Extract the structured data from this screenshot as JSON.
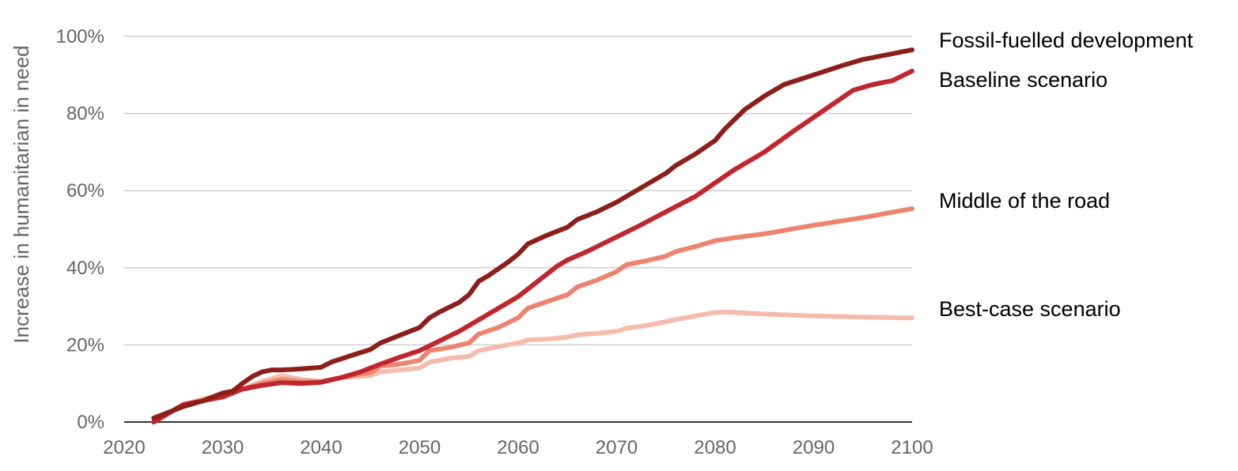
{
  "chart_data": {
    "type": "line",
    "title": "",
    "xlabel": "",
    "ylabel": "Increase in humanitarian in need",
    "xlim": [
      2020,
      2100
    ],
    "ylim": [
      0,
      100
    ],
    "x_ticks": [
      2020,
      2030,
      2040,
      2050,
      2060,
      2070,
      2080,
      2090,
      2100
    ],
    "y_ticks": [
      0,
      20,
      40,
      60,
      80,
      100
    ],
    "y_tick_suffix": "%",
    "grid": "horizontal",
    "legend": "inline-right",
    "series": [
      {
        "name": "Best-case scenario",
        "color": "#f5bcad",
        "points": [
          [
            2023,
            0
          ],
          [
            2024,
            1.5
          ],
          [
            2026,
            4.5
          ],
          [
            2028,
            6
          ],
          [
            2030,
            7
          ],
          [
            2032,
            8.5
          ],
          [
            2034,
            10.5
          ],
          [
            2036,
            12
          ],
          [
            2038,
            11
          ],
          [
            2040,
            10.5
          ],
          [
            2042,
            11.5
          ],
          [
            2045,
            12
          ],
          [
            2046,
            13
          ],
          [
            2048,
            13.5
          ],
          [
            2050,
            14
          ],
          [
            2051,
            15.5
          ],
          [
            2053,
            16.5
          ],
          [
            2055,
            17
          ],
          [
            2056,
            18.5
          ],
          [
            2058,
            19.5
          ],
          [
            2060,
            20.5
          ],
          [
            2061,
            21.3
          ],
          [
            2063,
            21.5
          ],
          [
            2065,
            22
          ],
          [
            2066,
            22.6
          ],
          [
            2068,
            23
          ],
          [
            2070,
            23.5
          ],
          [
            2071,
            24.3
          ],
          [
            2073,
            25
          ],
          [
            2075,
            26
          ],
          [
            2076,
            26.6
          ],
          [
            2078,
            27.5
          ],
          [
            2080,
            28.4
          ],
          [
            2081,
            28.5
          ],
          [
            2085,
            28
          ],
          [
            2090,
            27.5
          ],
          [
            2095,
            27.2
          ],
          [
            2100,
            27
          ]
        ]
      },
      {
        "name": "Middle of the road",
        "color": "#ec8570",
        "points": [
          [
            2023,
            0
          ],
          [
            2024,
            1.5
          ],
          [
            2026,
            4.5
          ],
          [
            2028,
            5.5
          ],
          [
            2030,
            7
          ],
          [
            2032,
            8.5
          ],
          [
            2034,
            10
          ],
          [
            2036,
            11
          ],
          [
            2038,
            10.5
          ],
          [
            2040,
            10.5
          ],
          [
            2042,
            11.5
          ],
          [
            2044,
            12.5
          ],
          [
            2045,
            12.8
          ],
          [
            2046,
            14.5
          ],
          [
            2048,
            15
          ],
          [
            2050,
            16
          ],
          [
            2051,
            18.5
          ],
          [
            2053,
            19.3
          ],
          [
            2055,
            20.5
          ],
          [
            2056,
            22.8
          ],
          [
            2058,
            24.5
          ],
          [
            2060,
            27
          ],
          [
            2061,
            29.5
          ],
          [
            2063,
            31.3
          ],
          [
            2065,
            33
          ],
          [
            2066,
            35
          ],
          [
            2068,
            36.8
          ],
          [
            2070,
            39
          ],
          [
            2071,
            40.8
          ],
          [
            2073,
            41.8
          ],
          [
            2075,
            43
          ],
          [
            2076,
            44.2
          ],
          [
            2078,
            45.5
          ],
          [
            2080,
            47
          ],
          [
            2082,
            47.8
          ],
          [
            2085,
            48.8
          ],
          [
            2090,
            51
          ],
          [
            2095,
            53
          ],
          [
            2100,
            55.3
          ]
        ]
      },
      {
        "name": "Baseline scenario",
        "color": "#c0262d",
        "points": [
          [
            2023,
            0
          ],
          [
            2024,
            1.5
          ],
          [
            2026,
            4.5
          ],
          [
            2028,
            5.5
          ],
          [
            2030,
            6.5
          ],
          [
            2032,
            8.5
          ],
          [
            2034,
            9.5
          ],
          [
            2036,
            10.2
          ],
          [
            2038,
            10
          ],
          [
            2040,
            10.3
          ],
          [
            2042,
            11.5
          ],
          [
            2044,
            13
          ],
          [
            2046,
            15
          ],
          [
            2048,
            16.8
          ],
          [
            2050,
            18.5
          ],
          [
            2052,
            21
          ],
          [
            2054,
            23.5
          ],
          [
            2056,
            26.5
          ],
          [
            2058,
            29.5
          ],
          [
            2060,
            32.5
          ],
          [
            2062,
            36.5
          ],
          [
            2064,
            40.5
          ],
          [
            2065,
            42
          ],
          [
            2067,
            44.2
          ],
          [
            2070,
            48
          ],
          [
            2072,
            50.5
          ],
          [
            2075,
            54.5
          ],
          [
            2078,
            58.5
          ],
          [
            2080,
            62
          ],
          [
            2082,
            65.5
          ],
          [
            2085,
            70
          ],
          [
            2088,
            75.5
          ],
          [
            2090,
            79
          ],
          [
            2092,
            82.5
          ],
          [
            2094,
            86
          ],
          [
            2096,
            87.5
          ],
          [
            2098,
            88.5
          ],
          [
            2100,
            91
          ]
        ]
      },
      {
        "name": "Fossil-fuelled development",
        "color": "#8c1f1a",
        "points": [
          [
            2023,
            1
          ],
          [
            2024,
            2
          ],
          [
            2026,
            4
          ],
          [
            2028,
            5.5
          ],
          [
            2030,
            7.5
          ],
          [
            2031,
            8
          ],
          [
            2032,
            10
          ],
          [
            2033,
            11.8
          ],
          [
            2034,
            13
          ],
          [
            2035,
            13.5
          ],
          [
            2036,
            13.5
          ],
          [
            2038,
            13.8
          ],
          [
            2040,
            14.2
          ],
          [
            2041,
            15.5
          ],
          [
            2043,
            17.2
          ],
          [
            2045,
            18.8
          ],
          [
            2046,
            20.5
          ],
          [
            2048,
            22.5
          ],
          [
            2050,
            24.5
          ],
          [
            2051,
            27
          ],
          [
            2052,
            28.5
          ],
          [
            2054,
            31
          ],
          [
            2055,
            33
          ],
          [
            2056,
            36.5
          ],
          [
            2057,
            38
          ],
          [
            2059,
            41.5
          ],
          [
            2060,
            43.5
          ],
          [
            2061,
            46.2
          ],
          [
            2063,
            48.5
          ],
          [
            2065,
            50.5
          ],
          [
            2066,
            52.5
          ],
          [
            2068,
            54.5
          ],
          [
            2070,
            57
          ],
          [
            2072,
            60
          ],
          [
            2075,
            64.5
          ],
          [
            2076,
            66.5
          ],
          [
            2078,
            69.5
          ],
          [
            2080,
            73
          ],
          [
            2081,
            76
          ],
          [
            2083,
            81
          ],
          [
            2085,
            84.5
          ],
          [
            2087,
            87.5
          ],
          [
            2090,
            90
          ],
          [
            2093,
            92.5
          ],
          [
            2095,
            94
          ],
          [
            2097,
            95
          ],
          [
            2100,
            96.5
          ]
        ]
      }
    ]
  }
}
